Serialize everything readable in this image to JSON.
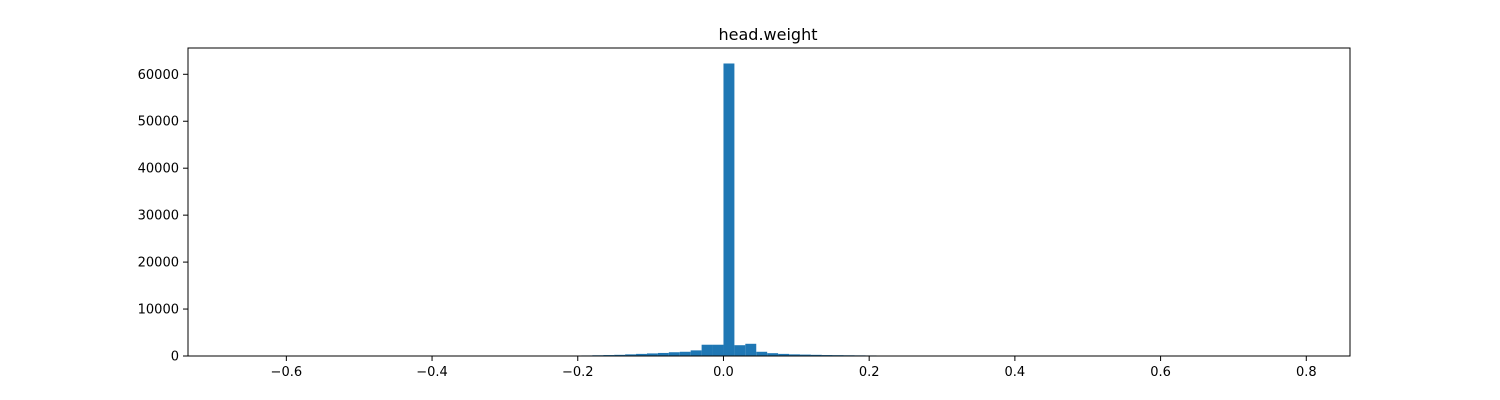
{
  "chart_data": {
    "type": "bar",
    "title": "head.weight",
    "xlabel": "",
    "ylabel": "",
    "xlim": [
      -0.735,
      0.86
    ],
    "ylim": [
      0,
      65600
    ],
    "bar_color": "#1f77b4",
    "grid": false,
    "x_ticks": [
      -0.6,
      -0.4,
      -0.2,
      0.0,
      0.2,
      0.4,
      0.6,
      0.8
    ],
    "x_tick_labels": [
      "−0.6",
      "−0.4",
      "−0.2",
      "0.0",
      "0.2",
      "0.4",
      "0.6",
      "0.8"
    ],
    "y_ticks": [
      0,
      10000,
      20000,
      30000,
      40000,
      50000,
      60000
    ],
    "y_tick_labels": [
      "0",
      "10000",
      "20000",
      "30000",
      "40000",
      "50000",
      "60000"
    ],
    "bin_edges": [
      -0.21,
      -0.195,
      -0.18,
      -0.165,
      -0.15,
      -0.135,
      -0.12,
      -0.105,
      -0.09,
      -0.075,
      -0.06,
      -0.045,
      -0.03,
      -0.015,
      0.0,
      0.015,
      0.03,
      0.045,
      0.06,
      0.075,
      0.09,
      0.105,
      0.12,
      0.135,
      0.15,
      0.165,
      0.18,
      0.195,
      0.21,
      0.225,
      0.24,
      0.255,
      0.27
    ],
    "counts": [
      100,
      120,
      160,
      200,
      250,
      350,
      450,
      550,
      650,
      800,
      900,
      1200,
      2400,
      2400,
      62300,
      2300,
      2600,
      900,
      600,
      450,
      350,
      300,
      250,
      200,
      180,
      160,
      140,
      120,
      100,
      90,
      80,
      70
    ]
  }
}
